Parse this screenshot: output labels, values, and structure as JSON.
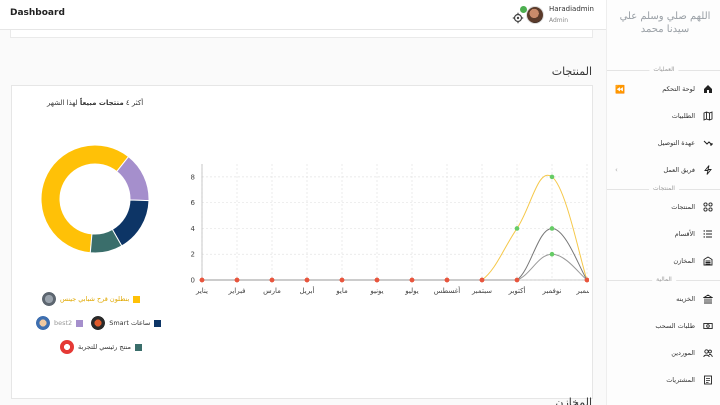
{
  "app": {
    "title": "Dashboard"
  },
  "user": {
    "name": "Haradiadmin",
    "role": "Admin"
  },
  "sidebar": {
    "title": "اللهم صلي وسلم علي سيدنا محمد",
    "sections": {
      "operations": "العمليات",
      "products": "المنتجات",
      "finance": "المالية"
    },
    "items": [
      {
        "label": "لوحة التحكم",
        "icon": "home-icon"
      },
      {
        "label": "الطلبيات",
        "icon": "map-icon"
      },
      {
        "label": "عهدة التوصيل",
        "icon": "trend-down-icon"
      },
      {
        "label": "فريق العمل",
        "icon": "bolt-icon"
      },
      {
        "label": "المنتجات",
        "icon": "grid-icon"
      },
      {
        "label": "الأقسام",
        "icon": "list-icon"
      },
      {
        "label": "المخازن",
        "icon": "warehouse-icon"
      },
      {
        "label": "الخزينه",
        "icon": "bank-icon"
      },
      {
        "label": "طلبات السحب",
        "icon": "cash-icon"
      },
      {
        "label": "الموردين",
        "icon": "users-icon"
      },
      {
        "label": "المشتريات",
        "icon": "cart-icon"
      }
    ]
  },
  "main": {
    "section_title": "المنتجات",
    "section_title_2": "المخازن",
    "card_heading_prefix": "أكثر ٤ ",
    "card_heading_bold": "منتجات مبيعاً",
    "card_heading_suffix": " لهذا الشهر"
  },
  "chart_data": {
    "type": "line",
    "categories": [
      "يناير",
      "فبراير",
      "مارس",
      "أبريل",
      "مايو",
      "يونيو",
      "يوليو",
      "أغسطس",
      "سبتمبر",
      "أكتوبر",
      "نوفمبر",
      "ديسمبر"
    ],
    "ylim": [
      0,
      9
    ],
    "yticks": [
      0,
      2,
      4,
      6,
      8
    ],
    "grid": true,
    "series": [
      {
        "name": "بنطلون قرح شبابي جينس",
        "color": "#f5c84a",
        "values": [
          0,
          0,
          0,
          0,
          0,
          0,
          0,
          0,
          0,
          4,
          8,
          0
        ]
      },
      {
        "name": "ساعات Smart",
        "color": "#777777",
        "values": [
          0,
          0,
          0,
          0,
          0,
          0,
          0,
          0,
          0,
          0,
          4,
          0
        ]
      },
      {
        "name": "best2",
        "color": "#999999",
        "values": [
          0,
          0,
          0,
          0,
          0,
          0,
          0,
          0,
          0,
          0,
          2,
          0
        ]
      }
    ],
    "donut": {
      "type": "pie",
      "slices": [
        {
          "name": "بنطلون قرح شبابي جينس",
          "value": 8,
          "color": "#ffc107"
        },
        {
          "name": "best2",
          "value": 2,
          "color": "#a58fcc"
        },
        {
          "name": "ساعات Smart",
          "value": 2.2,
          "color": "#0d3566"
        },
        {
          "name": "منتج رئيسي للتجربة",
          "value": 1.3,
          "color": "#3a6e6b"
        }
      ]
    },
    "legend": [
      {
        "label": "بنطلون قرح شبابي جينس",
        "color": "#ffc107",
        "text_color": "#e0a800"
      },
      {
        "label": "ساعات Smart",
        "color": "#0d3566",
        "text_color": "#333333"
      },
      {
        "label": "best2",
        "color": "#a58fcc",
        "text_color": "#999999"
      },
      {
        "label": "منتج رئيسي للتجربة",
        "color": "#3a6e6b",
        "text_color": "#333333"
      }
    ]
  }
}
